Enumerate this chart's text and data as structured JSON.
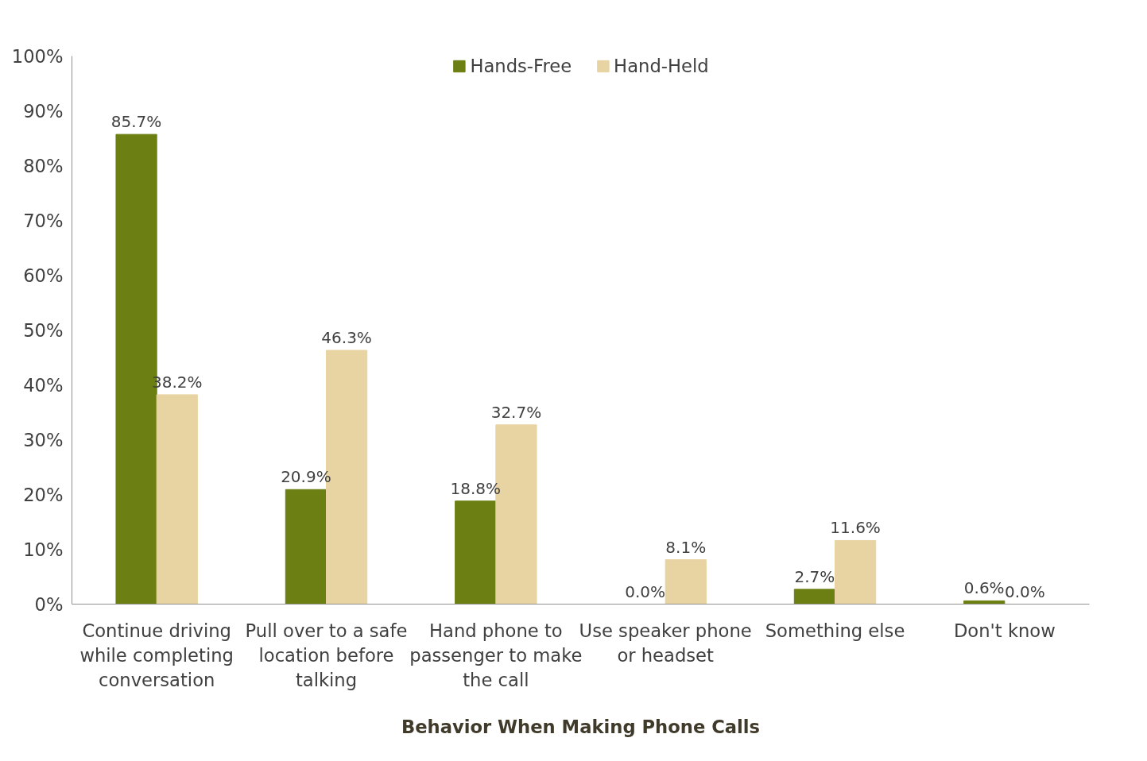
{
  "chart_data": {
    "type": "bar",
    "xlabel": "Behavior When Making Phone Calls",
    "categories": [
      "Continue driving while completing conversation",
      "Pull over to a safe location before talking",
      "Hand phone to passenger to make the call",
      "Use speaker phone or headset",
      "Something else",
      "Don't know"
    ],
    "series": [
      {
        "name": "Hands-Free",
        "color": "#6b7f12",
        "values": [
          85.7,
          20.9,
          18.8,
          0.0,
          2.7,
          0.6
        ],
        "value_labels": [
          "85.7%",
          "20.9%",
          "18.8%",
          "0.0%",
          "2.7%",
          "0.6%"
        ]
      },
      {
        "name": "Hand-Held",
        "color": "#e8d3a2",
        "values": [
          38.2,
          46.3,
          32.7,
          8.1,
          11.6,
          0.0
        ],
        "value_labels": [
          "38.2%",
          "46.3%",
          "32.7%",
          "8.1%",
          "11.6%",
          "0.0%"
        ]
      }
    ],
    "ylim": [
      0,
      100
    ],
    "yticks": [
      {
        "value": 0,
        "label": "0%"
      },
      {
        "value": 10,
        "label": "10%"
      },
      {
        "value": 20,
        "label": "20%"
      },
      {
        "value": 30,
        "label": "30%"
      },
      {
        "value": 40,
        "label": "40%"
      },
      {
        "value": 50,
        "label": "50%"
      },
      {
        "value": 60,
        "label": "60%"
      },
      {
        "value": 70,
        "label": "70%"
      },
      {
        "value": 80,
        "label": "80%"
      },
      {
        "value": 90,
        "label": "90%"
      },
      {
        "value": 100,
        "label": "100%"
      }
    ],
    "grid": false,
    "legend": "top"
  }
}
